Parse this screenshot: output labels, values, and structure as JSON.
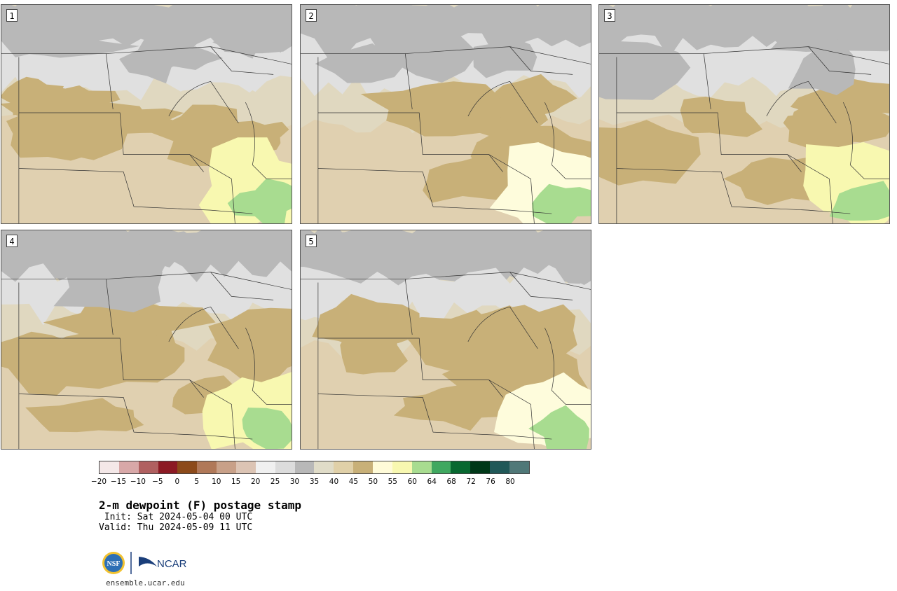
{
  "panels": [
    {
      "label": "1",
      "palette": [
        "#b8b8b8",
        "#e0e0e0",
        "#e0d8c0",
        "#e0d0b0",
        "#c8b078",
        "#f8f8b0",
        "#a8dc90"
      ]
    },
    {
      "label": "2",
      "palette": [
        "#b8b8b8",
        "#e0e0e0",
        "#e0d8c0",
        "#e0d0b0",
        "#c8b078",
        "#fefcdc",
        "#a8dc90"
      ]
    },
    {
      "label": "3",
      "palette": [
        "#b8b8b8",
        "#e0e0e0",
        "#e0d8c0",
        "#e0d0b0",
        "#c8b078",
        "#f8f8b0",
        "#a8dc90"
      ]
    },
    {
      "label": "4",
      "palette": [
        "#b8b8b8",
        "#e0e0e0",
        "#e0d8c0",
        "#e0d0b0",
        "#c8b078",
        "#f8f8b0",
        "#a8dc90"
      ]
    },
    {
      "label": "5",
      "palette": [
        "#b8b8b8",
        "#e0e0e0",
        "#e0d8c0",
        "#e0d0b0",
        "#c8b078",
        "#fefcdc",
        "#a8dc90"
      ]
    }
  ],
  "colorbar": {
    "colors": [
      "#f4e8e8",
      "#d8a8a8",
      "#b06060",
      "#8c1a24",
      "#8c4a1a",
      "#b07858",
      "#c8a088",
      "#dcc4b4",
      "#f0f0f0",
      "#dcdcdc",
      "#b8b8b8",
      "#e0dcc8",
      "#e0d0a8",
      "#c8b078",
      "#fffbd8",
      "#f8f8b0",
      "#a8dc90",
      "#40a860",
      "#086830",
      "#003818",
      "#205858",
      "#507878"
    ],
    "ticks": [
      "−20",
      "−15",
      "−10",
      "−5",
      "0",
      "5",
      "10",
      "15",
      "20",
      "25",
      "30",
      "35",
      "40",
      "45",
      "50",
      "55",
      "60",
      "64",
      "68",
      "72",
      "76",
      "80"
    ]
  },
  "title": "2-m dewpoint (F) postage stamp",
  "init_line": " Init: Sat 2024-05-04 00 UTC",
  "valid_line": "Valid: Thu 2024-05-09 11 UTC",
  "logo": {
    "nsf_text": "NSF",
    "ncar_text": "NCAR"
  },
  "url": "ensemble.ucar.edu"
}
